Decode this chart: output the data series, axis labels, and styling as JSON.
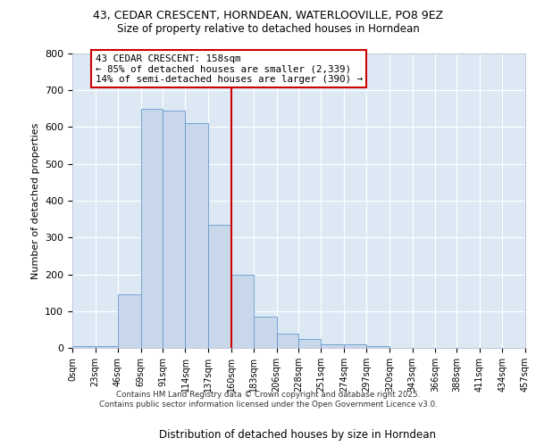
{
  "title_line1": "43, CEDAR CRESCENT, HORNDEAN, WATERLOOVILLE, PO8 9EZ",
  "title_line2": "Size of property relative to detached houses in Horndean",
  "xlabel": "Distribution of detached houses by size in Horndean",
  "ylabel": "Number of detached properties",
  "bins": [
    0,
    23,
    46,
    69,
    91,
    114,
    137,
    160,
    183,
    206,
    228,
    251,
    274,
    297,
    320,
    343,
    366,
    388,
    411,
    434,
    457
  ],
  "counts": [
    5,
    5,
    145,
    650,
    645,
    610,
    335,
    200,
    85,
    40,
    25,
    10,
    10,
    5,
    0,
    0,
    0,
    0,
    0,
    0
  ],
  "bar_color": "#c8d8ea",
  "bar_edge_color": "#6699cc",
  "vline_x": 160,
  "vline_color": "#cc0000",
  "annotation_text": "43 CEDAR CRESCENT: 158sqm\n← 85% of detached houses are smaller (2,339)\n14% of semi-detached houses are larger (390) →",
  "annotation_box_color": "#ffffff",
  "annotation_box_edge": "#cc0000",
  "ylim": [
    0,
    800
  ],
  "yticks": [
    0,
    100,
    200,
    300,
    400,
    500,
    600,
    700,
    800
  ],
  "axes_background": "#dce9f5",
  "footer_line1": "Contains HM Land Registry data © Crown copyright and database right 2025.",
  "footer_line2": "Contains public sector information licensed under the Open Government Licence v3.0.",
  "tick_labels": [
    "0sqm",
    "23sqm",
    "46sqm",
    "69sqm",
    "91sqm",
    "114sqm",
    "137sqm",
    "160sqm",
    "183sqm",
    "206sqm",
    "228sqm",
    "251sqm",
    "274sqm",
    "297sqm",
    "320sqm",
    "343sqm",
    "366sqm",
    "388sqm",
    "411sqm",
    "434sqm",
    "457sqm"
  ]
}
